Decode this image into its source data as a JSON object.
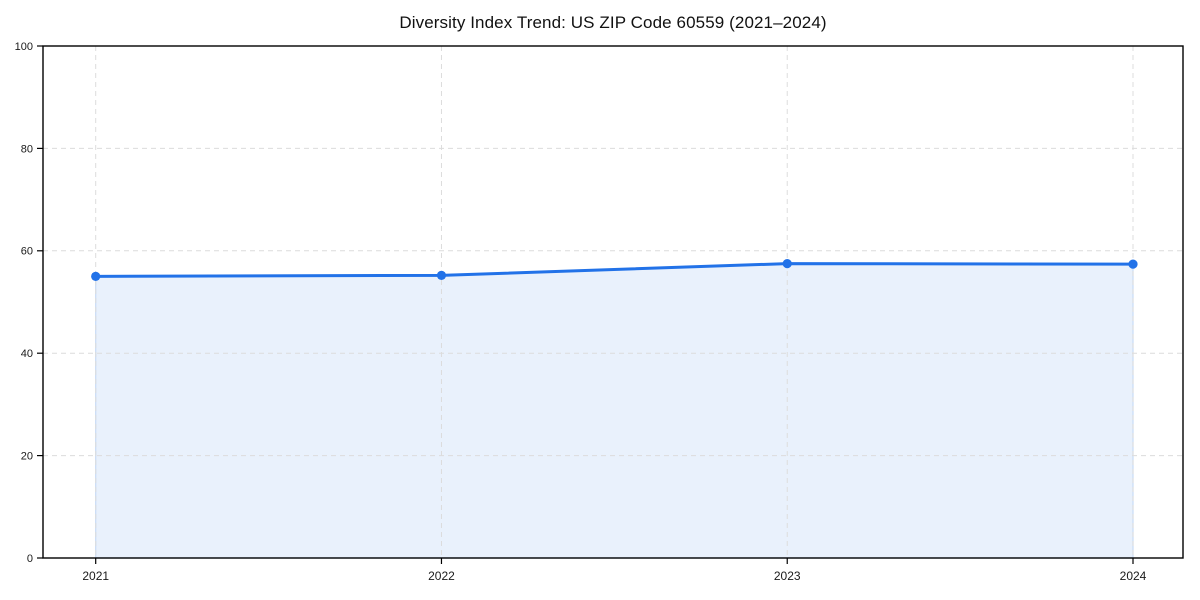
{
  "chart_data": {
    "type": "area",
    "title": "Diversity Index Trend: US ZIP Code 60559 (2021–2024)",
    "categories": [
      "2021",
      "2022",
      "2023",
      "2024"
    ],
    "values": [
      55.0,
      55.2,
      57.5,
      57.4
    ],
    "xlabel": "",
    "ylabel": "",
    "ylim": [
      0,
      100
    ],
    "yticks": [
      0,
      20,
      40,
      60,
      80,
      100
    ],
    "grid": true,
    "grid_style": "dashed",
    "legend_position": "none",
    "colors": {
      "line": "#2272e8",
      "marker": "#2272e8",
      "area_fill": "#e9f1fc",
      "area_edge": "#c8dbf6",
      "grid": "#dcdcdc",
      "axis": "#000000",
      "tick_text": "#1a1a1a",
      "background": "#ffffff"
    }
  }
}
